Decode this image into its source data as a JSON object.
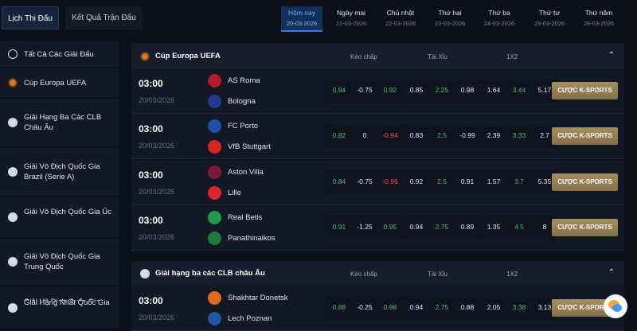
{
  "topbar": {
    "tabs": [
      {
        "label": "Lịch Thi Đấu"
      },
      {
        "label": "Kết Quả Trận Đấu"
      }
    ],
    "dates": [
      {
        "day": "Hôm nay",
        "date": "20-03-2026"
      },
      {
        "day": "Ngày mai",
        "date": "21-03-2026"
      },
      {
        "day": "Chủ nhật",
        "date": "22-03-2026"
      },
      {
        "day": "Thứ hai",
        "date": "23-03-2026"
      },
      {
        "day": "Thứ ba",
        "date": "24-03-2026"
      },
      {
        "day": "Thứ tư",
        "date": "25-03-2026"
      },
      {
        "day": "Thứ năm",
        "date": "26-03-2026"
      }
    ]
  },
  "sidebar": {
    "items": [
      {
        "label": "Tất Cả Các Giải Đấu"
      },
      {
        "label": "Cúp Europa UEFA"
      },
      {
        "label": "Giải Hạng Ba Các CLB Châu Âu"
      },
      {
        "label": "Giải Vô Địch Quốc Gia Brazil (Serie A)"
      },
      {
        "label": "Giải Vô Địch Quốc Gia Úc"
      },
      {
        "label": "Giải Vô Địch Quốc Gia Trung Quốc"
      },
      {
        "label": "Giải Vô Địch Quốc Gia Colombia"
      },
      {
        "label": "Giải Hạng Nhất Quốc Gia"
      }
    ]
  },
  "columns": {
    "handicap": "Kèo chấp",
    "overunder": "Tài Xỉu",
    "onextwo": "1X2"
  },
  "bet_label": "CƯỢC K-SPORTS",
  "leagues": [
    {
      "name": "Cúp Europa UEFA",
      "matches": [
        {
          "time": "03:00",
          "date": "20/03/2026",
          "home": "AS Roma",
          "away": "Bologna",
          "odds": [
            "0.94",
            "-0.75",
            "0.92",
            "0.85",
            "2.25",
            "0.98",
            "1.64",
            "3.44",
            "5.17"
          ]
        },
        {
          "time": "03:00",
          "date": "20/03/2026",
          "home": "FC Porto",
          "away": "VfB Stuttgart",
          "odds": [
            "0.82",
            "0",
            "-0.94",
            "0.83",
            "2.5",
            "-0.99",
            "2.39",
            "3.33",
            "2.7"
          ]
        },
        {
          "time": "03:00",
          "date": "20/03/2026",
          "home": "Aston Villa",
          "away": "Lille",
          "odds": [
            "0.84",
            "-0.75",
            "-0.96",
            "0.92",
            "2.5",
            "0.91",
            "1.57",
            "3.7",
            "5.35"
          ]
        },
        {
          "time": "03:00",
          "date": "20/03/2026",
          "home": "Real Betis",
          "away": "Panathinaikos",
          "odds": [
            "0.91",
            "-1.25",
            "0.95",
            "0.94",
            "2.75",
            "0.89",
            "1.35",
            "4.5",
            "8"
          ]
        }
      ]
    },
    {
      "name": "Giải hạng ba các CLB châu Âu",
      "matches": [
        {
          "time": "03:00",
          "date": "20/03/2026",
          "home": "Shakhtar Donetsk",
          "away": "Lech Poznan",
          "odds": [
            "0.88",
            "-0.25",
            "0.98",
            "0.94",
            "2.75",
            "0.88",
            "2.05",
            "3.38",
            "3.13"
          ]
        }
      ]
    }
  ],
  "colors": {
    "accent": "#2f7de1",
    "green_odds": "#3fc178",
    "red_odds": "#ff4a4a",
    "bet_button": "#9a8358"
  }
}
